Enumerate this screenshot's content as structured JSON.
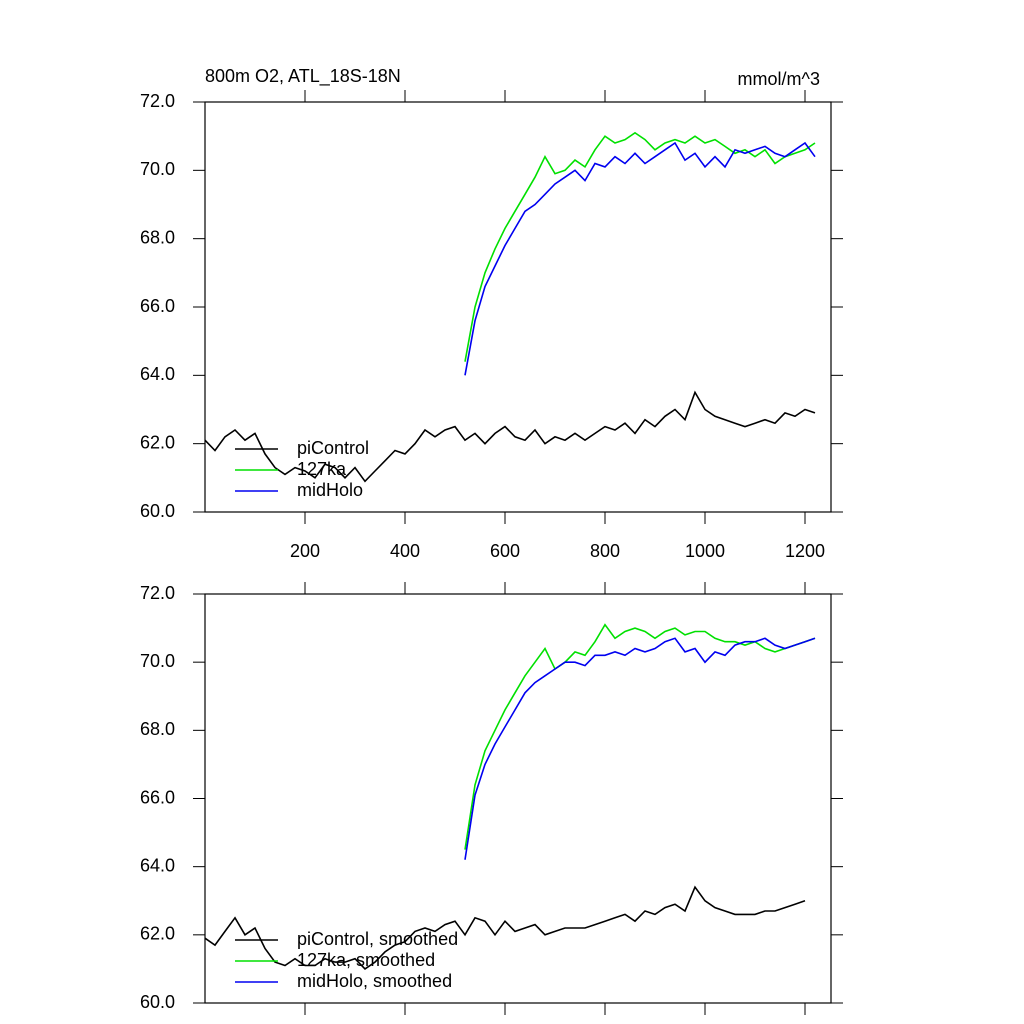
{
  "chart_data": [
    {
      "type": "line",
      "title": "800m O2, ATL_18S-18N",
      "units": "mmol/m^3",
      "xlim": [
        0,
        1252
      ],
      "xticks": [
        200,
        400,
        600,
        800,
        1000,
        1200
      ],
      "xtick_labels": true,
      "ylim": [
        60,
        72
      ],
      "yticks": [
        {
          "value": 60,
          "label": "60.0"
        },
        {
          "value": 62,
          "label": "62.0"
        },
        {
          "value": 64,
          "label": "64.0"
        },
        {
          "value": 66,
          "label": "66.0"
        },
        {
          "value": 68,
          "label": "68.0"
        },
        {
          "value": 70,
          "label": "70.0"
        },
        {
          "value": 72,
          "label": "72.0"
        }
      ],
      "legend": "lower left",
      "series": [
        {
          "name": "piControl",
          "color": "#000000",
          "x": [
            0,
            20,
            40,
            60,
            80,
            100,
            120,
            140,
            160,
            180,
            200,
            220,
            240,
            260,
            280,
            300,
            320,
            340,
            360,
            380,
            400,
            420,
            440,
            460,
            480,
            500,
            520,
            540,
            560,
            580,
            600,
            620,
            640,
            660,
            680,
            700,
            720,
            740,
            760,
            780,
            800,
            820,
            840,
            860,
            880,
            900,
            920,
            940,
            960,
            980,
            1000,
            1020,
            1040,
            1060,
            1080,
            1100,
            1120,
            1140,
            1160,
            1180,
            1200,
            1220
          ],
          "values": [
            62.1,
            61.8,
            62.2,
            62.4,
            62.1,
            62.3,
            61.7,
            61.3,
            61.1,
            61.3,
            61.2,
            61.0,
            61.4,
            61.3,
            61.0,
            61.3,
            60.9,
            61.2,
            61.5,
            61.8,
            61.7,
            62.0,
            62.4,
            62.2,
            62.4,
            62.5,
            62.1,
            62.3,
            62.0,
            62.3,
            62.5,
            62.2,
            62.1,
            62.4,
            62.0,
            62.2,
            62.1,
            62.3,
            62.1,
            62.3,
            62.5,
            62.4,
            62.6,
            62.3,
            62.7,
            62.5,
            62.8,
            63.0,
            62.7,
            63.5,
            63.0,
            62.8,
            62.7,
            62.6,
            62.5,
            62.6,
            62.7,
            62.6,
            62.9,
            62.8,
            63.0,
            62.9
          ]
        },
        {
          "name": "127ka",
          "color": "#00e000",
          "x": [
            520,
            540,
            560,
            580,
            600,
            620,
            640,
            660,
            680,
            700,
            720,
            740,
            760,
            780,
            800,
            820,
            840,
            860,
            880,
            900,
            920,
            940,
            960,
            980,
            1000,
            1020,
            1040,
            1060,
            1080,
            1100,
            1120,
            1140,
            1160,
            1180,
            1200,
            1220
          ],
          "values": [
            64.4,
            66.0,
            67.0,
            67.7,
            68.3,
            68.8,
            69.3,
            69.8,
            70.4,
            69.9,
            70.0,
            70.3,
            70.1,
            70.6,
            71.0,
            70.8,
            70.9,
            71.1,
            70.9,
            70.6,
            70.8,
            70.9,
            70.8,
            71.0,
            70.8,
            70.9,
            70.7,
            70.5,
            70.6,
            70.4,
            70.6,
            70.2,
            70.4,
            70.5,
            70.6,
            70.8
          ]
        },
        {
          "name": "midHolo",
          "color": "#0000f0",
          "x": [
            520,
            540,
            560,
            580,
            600,
            620,
            640,
            660,
            680,
            700,
            720,
            740,
            760,
            780,
            800,
            820,
            840,
            860,
            880,
            900,
            920,
            940,
            960,
            980,
            1000,
            1020,
            1040,
            1060,
            1080,
            1100,
            1120,
            1140,
            1160,
            1180,
            1200,
            1220
          ],
          "values": [
            64.0,
            65.6,
            66.6,
            67.2,
            67.8,
            68.3,
            68.8,
            69.0,
            69.3,
            69.6,
            69.8,
            70.0,
            69.7,
            70.2,
            70.1,
            70.4,
            70.2,
            70.5,
            70.2,
            70.4,
            70.6,
            70.8,
            70.3,
            70.5,
            70.1,
            70.4,
            70.1,
            70.6,
            70.5,
            70.6,
            70.7,
            70.5,
            70.4,
            70.6,
            70.8,
            70.4
          ]
        }
      ]
    },
    {
      "type": "line",
      "xlim": [
        0,
        1252
      ],
      "xticks": [
        200,
        400,
        600,
        800,
        1000,
        1200
      ],
      "xtick_labels": false,
      "ylim": [
        60,
        72
      ],
      "yticks": [
        {
          "value": 60,
          "label": "60.0"
        },
        {
          "value": 62,
          "label": "62.0"
        },
        {
          "value": 64,
          "label": "64.0"
        },
        {
          "value": 66,
          "label": "66.0"
        },
        {
          "value": 68,
          "label": "68.0"
        },
        {
          "value": 70,
          "label": "70.0"
        },
        {
          "value": 72,
          "label": "72.0"
        }
      ],
      "legend": "lower left",
      "series": [
        {
          "name": "piControl, smoothed",
          "color": "#000000",
          "x": [
            0,
            20,
            40,
            60,
            80,
            100,
            120,
            140,
            160,
            180,
            200,
            220,
            240,
            260,
            280,
            300,
            320,
            340,
            360,
            380,
            400,
            420,
            440,
            460,
            480,
            500,
            520,
            540,
            560,
            580,
            600,
            620,
            640,
            660,
            680,
            700,
            720,
            740,
            760,
            780,
            800,
            820,
            840,
            860,
            880,
            900,
            920,
            940,
            960,
            980,
            1000,
            1020,
            1040,
            1060,
            1080,
            1100,
            1120,
            1140,
            1160,
            1180,
            1200
          ],
          "values": [
            61.9,
            61.7,
            62.1,
            62.5,
            62.0,
            62.2,
            61.6,
            61.2,
            61.1,
            61.3,
            61.1,
            61.1,
            61.3,
            61.2,
            61.2,
            61.3,
            61.0,
            61.2,
            61.5,
            61.7,
            61.8,
            62.1,
            62.2,
            62.1,
            62.3,
            62.4,
            62.0,
            62.5,
            62.4,
            62.0,
            62.4,
            62.1,
            62.2,
            62.3,
            62.0,
            62.1,
            62.2,
            62.2,
            62.2,
            62.3,
            62.4,
            62.5,
            62.6,
            62.4,
            62.7,
            62.6,
            62.8,
            62.9,
            62.7,
            63.4,
            63.0,
            62.8,
            62.7,
            62.6,
            62.6,
            62.6,
            62.7,
            62.7,
            62.8,
            62.9,
            63.0
          ]
        },
        {
          "name": "127ka, smoothed",
          "color": "#00e000",
          "x": [
            520,
            540,
            560,
            580,
            600,
            620,
            640,
            660,
            680,
            700,
            720,
            740,
            760,
            780,
            800,
            820,
            840,
            860,
            880,
            900,
            920,
            940,
            960,
            980,
            1000,
            1020,
            1040,
            1060,
            1080,
            1100,
            1120,
            1140,
            1160,
            1180,
            1200,
            1220
          ],
          "values": [
            64.5,
            66.4,
            67.4,
            68.0,
            68.6,
            69.1,
            69.6,
            70.0,
            70.4,
            69.8,
            70.0,
            70.3,
            70.2,
            70.6,
            71.1,
            70.7,
            70.9,
            71.0,
            70.9,
            70.7,
            70.9,
            71.0,
            70.8,
            70.9,
            70.9,
            70.7,
            70.6,
            70.6,
            70.5,
            70.6,
            70.4,
            70.3,
            70.4,
            70.5,
            70.6,
            70.7
          ]
        },
        {
          "name": "midHolo, smoothed",
          "color": "#0000f0",
          "x": [
            520,
            540,
            560,
            580,
            600,
            620,
            640,
            660,
            680,
            700,
            720,
            740,
            760,
            780,
            800,
            820,
            840,
            860,
            880,
            900,
            920,
            940,
            960,
            980,
            1000,
            1020,
            1040,
            1060,
            1080,
            1100,
            1120,
            1140,
            1160,
            1180,
            1200,
            1220
          ],
          "values": [
            64.2,
            66.1,
            67.0,
            67.6,
            68.1,
            68.6,
            69.1,
            69.4,
            69.6,
            69.8,
            70.0,
            70.0,
            69.9,
            70.2,
            70.2,
            70.3,
            70.2,
            70.4,
            70.3,
            70.4,
            70.6,
            70.7,
            70.3,
            70.4,
            70.0,
            70.3,
            70.2,
            70.5,
            70.6,
            70.6,
            70.7,
            70.5,
            70.4,
            70.5,
            70.6,
            70.7
          ]
        }
      ]
    }
  ]
}
